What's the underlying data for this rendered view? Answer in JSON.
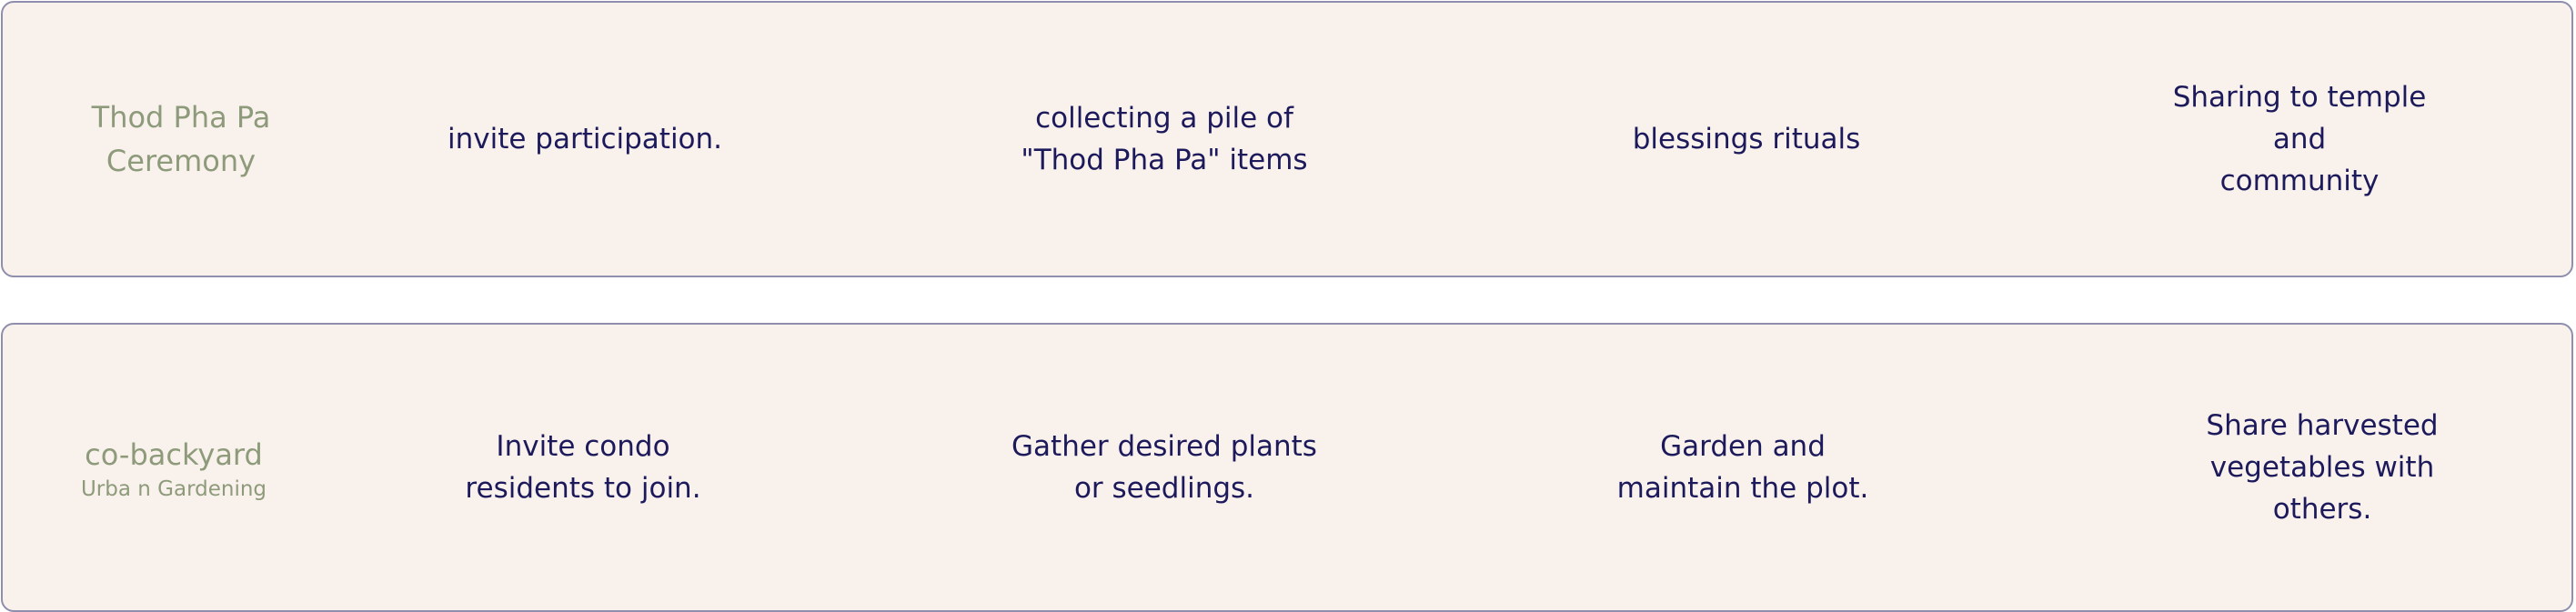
{
  "rows": [
    {
      "label": "Thod Pha Pa\nCeremony",
      "sublabel": "",
      "steps": [
        "invite participation.",
        "collecting a pile of\n\"Thod Pha Pa\" items",
        "blessings rituals",
        "Sharing to temple and\ncommunity"
      ]
    },
    {
      "label": "co-backyard",
      "sublabel": "Urba n Gardening",
      "steps": [
        "Invite condo\nresidents to join.",
        "Gather desired plants\nor seedlings.",
        "Garden and\nmaintain the plot.",
        "Share harvested\nvegetables with others."
      ]
    }
  ]
}
